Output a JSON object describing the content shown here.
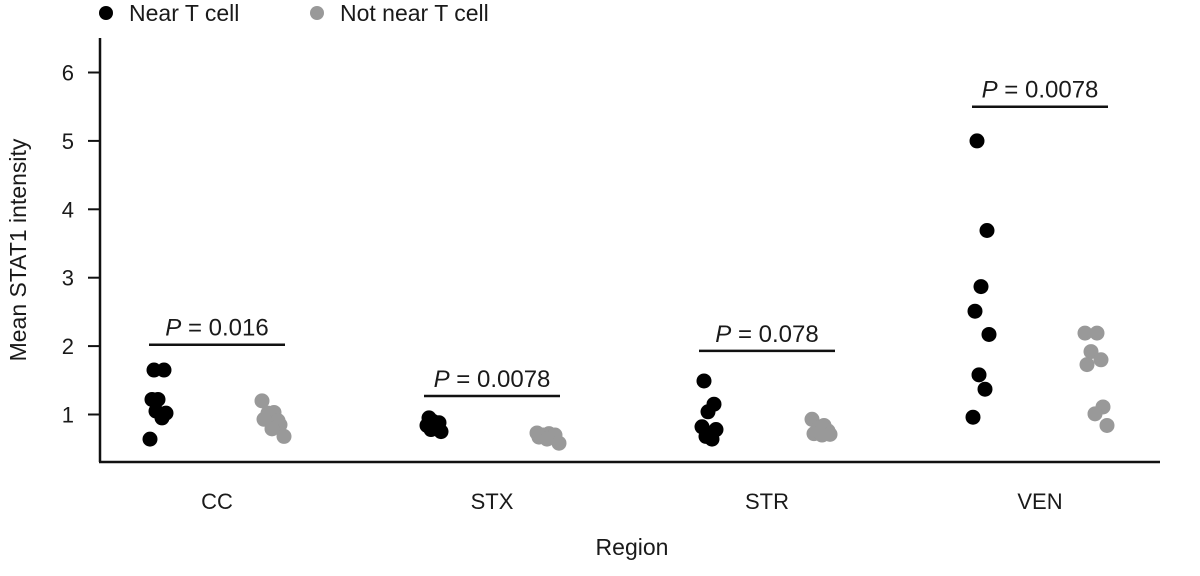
{
  "chart_data": {
    "type": "scatter",
    "xlabel": "Region",
    "ylabel": "Mean STAT1 intensity",
    "categories": [
      "CC",
      "STX",
      "STR",
      "VEN"
    ],
    "ylim": [
      0.3,
      6.5
    ],
    "yticks": [
      1,
      2,
      3,
      4,
      5,
      6
    ],
    "grid": false,
    "legend_position": "top-left",
    "series": [
      {
        "name": "Near T cell",
        "color": "#000000",
        "groups": [
          [
            1.65,
            1.65,
            1.22,
            1.22,
            1.02,
            1.05,
            0.95,
            0.64
          ],
          [
            0.95,
            0.88,
            0.9,
            0.84,
            0.75,
            0.78
          ],
          [
            1.49,
            1.15,
            1.04,
            0.82,
            0.78,
            0.68,
            0.64
          ],
          [
            5.0,
            3.69,
            2.87,
            2.51,
            2.17,
            1.58,
            1.37,
            0.96
          ]
        ]
      },
      {
        "name": "Not near T cell",
        "color": "#999999",
        "groups": [
          [
            1.2,
            1.03,
            1.02,
            0.91,
            0.93,
            0.85,
            0.79,
            0.68
          ],
          [
            0.73,
            0.72,
            0.7,
            0.68,
            0.67,
            0.7,
            0.64,
            0.58
          ],
          [
            0.93,
            0.84,
            0.8,
            0.76,
            0.72,
            0.71,
            0.7
          ],
          [
            2.19,
            2.19,
            1.92,
            1.8,
            1.73,
            1.11,
            1.01,
            0.84
          ]
        ]
      }
    ],
    "annotations": [
      {
        "p_symbol": "P",
        "text": " = 0.016",
        "category": "CC",
        "y": 2.02
      },
      {
        "p_symbol": "P",
        "text": " = 0.0078",
        "category": "STX",
        "y": 1.27
      },
      {
        "p_symbol": "P",
        "text": " = 0.078",
        "category": "STR",
        "y": 1.93
      },
      {
        "p_symbol": "P",
        "text": " = 0.0078",
        "category": "VEN",
        "y": 5.5
      }
    ]
  }
}
